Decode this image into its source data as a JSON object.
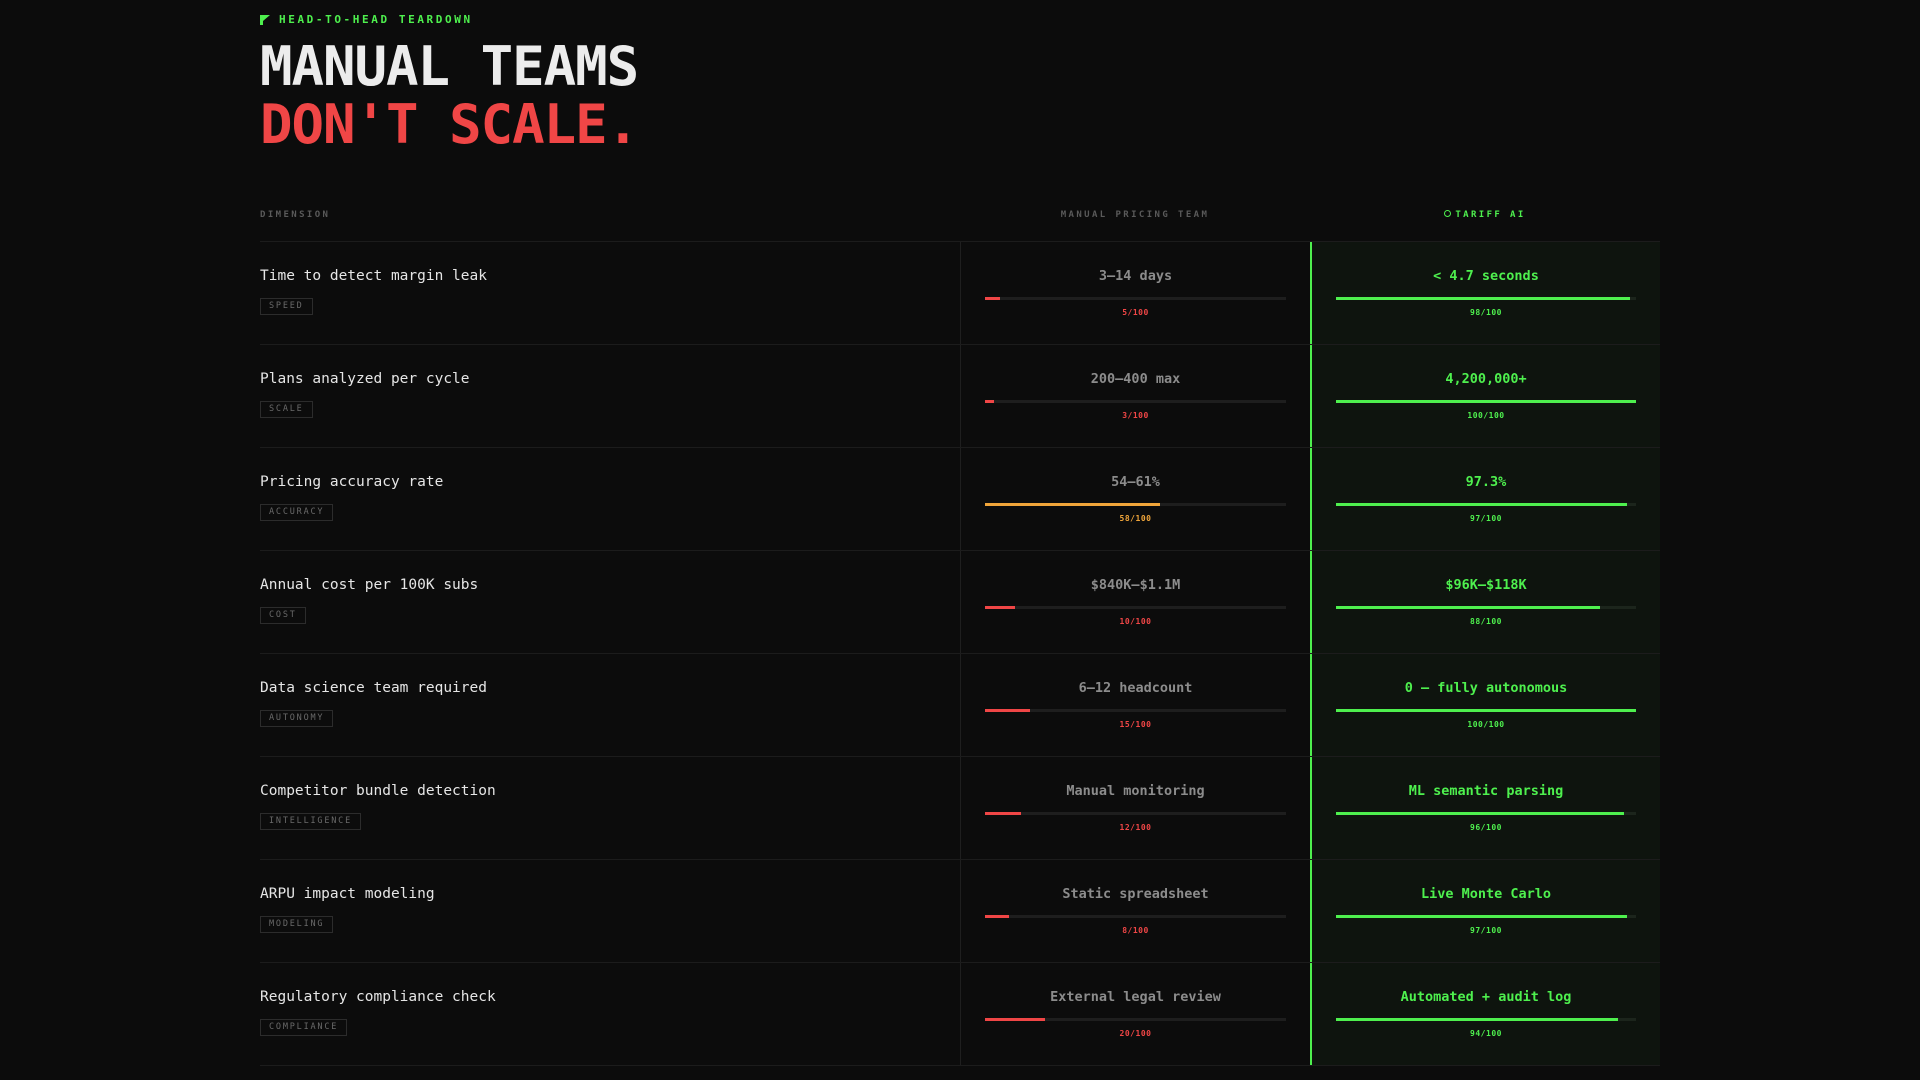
{
  "header": {
    "eyebrow": "HEAD-TO-HEAD TEARDOWN",
    "eyebrow_icon": "flag-icon",
    "title_line1": "MANUAL TEAMS",
    "title_line2": "DON'T SCALE."
  },
  "columns": {
    "dimension": "DIMENSION",
    "manual": "MANUAL PRICING TEAM",
    "ai": "TARIFF AI",
    "ai_icon": "dot-icon"
  },
  "colors": {
    "accent_green": "#4ef04e",
    "alert_red": "#f04646",
    "warn_amber": "#f0a53a",
    "background": "#0c0c0c"
  },
  "rows": [
    {
      "label": "Time to detect margin leak",
      "tag": "SPEED",
      "manual": {
        "value": "3–14 days",
        "score": 5,
        "score_label": "5/100",
        "color": "#f04646"
      },
      "ai": {
        "value": "< 4.7 seconds",
        "score": 98,
        "score_label": "98/100"
      }
    },
    {
      "label": "Plans analyzed per cycle",
      "tag": "SCALE",
      "manual": {
        "value": "200–400 max",
        "score": 3,
        "score_label": "3/100",
        "color": "#f04646"
      },
      "ai": {
        "value": "4,200,000+",
        "score": 100,
        "score_label": "100/100"
      }
    },
    {
      "label": "Pricing accuracy rate",
      "tag": "ACCURACY",
      "manual": {
        "value": "54–61%",
        "score": 58,
        "score_label": "58/100",
        "color": "#f0a53a"
      },
      "ai": {
        "value": "97.3%",
        "score": 97,
        "score_label": "97/100"
      }
    },
    {
      "label": "Annual cost per 100K subs",
      "tag": "COST",
      "manual": {
        "value": "$840K–$1.1M",
        "score": 10,
        "score_label": "10/100",
        "color": "#f04646"
      },
      "ai": {
        "value": "$96K–$118K",
        "score": 88,
        "score_label": "88/100"
      }
    },
    {
      "label": "Data science team required",
      "tag": "AUTONOMY",
      "manual": {
        "value": "6–12 headcount",
        "score": 15,
        "score_label": "15/100",
        "color": "#f04646"
      },
      "ai": {
        "value": "0 — fully autonomous",
        "score": 100,
        "score_label": "100/100"
      }
    },
    {
      "label": "Competitor bundle detection",
      "tag": "INTELLIGENCE",
      "manual": {
        "value": "Manual monitoring",
        "score": 12,
        "score_label": "12/100",
        "color": "#f04646"
      },
      "ai": {
        "value": "ML semantic parsing",
        "score": 96,
        "score_label": "96/100"
      }
    },
    {
      "label": "ARPU impact modeling",
      "tag": "MODELING",
      "manual": {
        "value": "Static spreadsheet",
        "score": 8,
        "score_label": "8/100",
        "color": "#f04646"
      },
      "ai": {
        "value": "Live Monte Carlo",
        "score": 97,
        "score_label": "97/100"
      }
    },
    {
      "label": "Regulatory compliance check",
      "tag": "COMPLIANCE",
      "manual": {
        "value": "External legal review",
        "score": 20,
        "score_label": "20/100",
        "color": "#f04646"
      },
      "ai": {
        "value": "Automated + audit log",
        "score": 94,
        "score_label": "94/100"
      }
    }
  ]
}
